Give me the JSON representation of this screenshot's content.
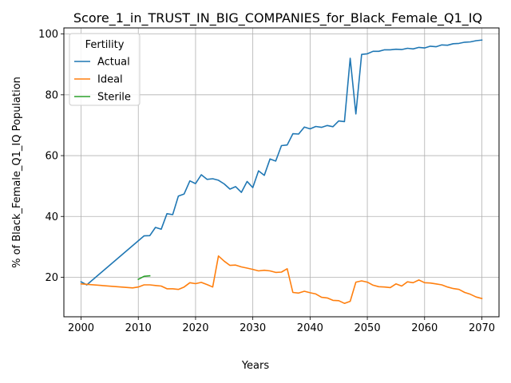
{
  "chart_data": {
    "type": "line",
    "title": "Score_1_in_TRUST_IN_BIG_COMPANIES_for_Black_Female_Q1_IQ",
    "xlabel": "Years",
    "ylabel": "% of Black_Female_Q1_IQ Population",
    "xlim": [
      1997,
      2073
    ],
    "ylim": [
      7,
      102
    ],
    "xticks": [
      2000,
      2010,
      2020,
      2030,
      2040,
      2050,
      2060,
      2070
    ],
    "yticks": [
      20,
      40,
      60,
      80,
      100
    ],
    "grid": true,
    "legend": {
      "title": "Fertility",
      "placement": "top-left"
    },
    "series": [
      {
        "name": "Actual",
        "color": "#1f77b4",
        "x": [
          2000,
          2001,
          2011,
          2012,
          2013,
          2014,
          2015,
          2016,
          2017,
          2018,
          2019,
          2020,
          2021,
          2022,
          2023,
          2024,
          2025,
          2026,
          2027,
          2028,
          2029,
          2030,
          2031,
          2032,
          2033,
          2034,
          2035,
          2036,
          2037,
          2038,
          2039,
          2040,
          2041,
          2042,
          2043,
          2044,
          2045,
          2046,
          2047,
          2048,
          2049,
          2050,
          2051,
          2052,
          2053,
          2054,
          2055,
          2056,
          2057,
          2058,
          2059,
          2060,
          2061,
          2062,
          2063,
          2064,
          2065,
          2066,
          2067,
          2068,
          2069,
          2070
        ],
        "y": [
          18.5,
          17.5,
          33.6,
          33.7,
          36.4,
          35.8,
          40.9,
          40.6,
          46.7,
          47.4,
          51.7,
          50.8,
          53.7,
          52.2,
          52.4,
          51.9,
          50.7,
          49.0,
          49.8,
          47.9,
          51.5,
          49.5,
          55.0,
          53.5,
          58.9,
          58.2,
          63.3,
          63.5,
          67.2,
          67.1,
          69.4,
          68.8,
          69.6,
          69.3,
          69.9,
          69.5,
          71.4,
          71.2,
          92.0,
          73.7,
          93.3,
          93.5,
          94.3,
          94.3,
          94.8,
          94.8,
          95.0,
          94.9,
          95.3,
          95.1,
          95.6,
          95.4,
          96.0,
          95.8,
          96.4,
          96.3,
          96.8,
          96.9,
          97.3,
          97.4,
          97.8,
          98.0
        ]
      },
      {
        "name": "Ideal",
        "color": "#ff7f0e",
        "x": [
          2000,
          2009,
          2010,
          2011,
          2012,
          2013,
          2014,
          2015,
          2016,
          2017,
          2018,
          2019,
          2020,
          2021,
          2022,
          2023,
          2024,
          2025,
          2026,
          2027,
          2028,
          2029,
          2030,
          2031,
          2032,
          2033,
          2034,
          2035,
          2036,
          2037,
          2038,
          2039,
          2040,
          2041,
          2042,
          2043,
          2044,
          2045,
          2046,
          2047,
          2048,
          2049,
          2050,
          2051,
          2052,
          2053,
          2054,
          2055,
          2056,
          2057,
          2058,
          2059,
          2060,
          2061,
          2062,
          2063,
          2064,
          2065,
          2066,
          2067,
          2068,
          2069,
          2070
        ],
        "y": [
          17.8,
          16.5,
          16.8,
          17.5,
          17.5,
          17.3,
          17.1,
          16.2,
          16.2,
          16.0,
          16.8,
          18.2,
          17.9,
          18.3,
          17.6,
          16.8,
          27.0,
          25.3,
          23.9,
          24.0,
          23.4,
          23.0,
          22.6,
          22.1,
          22.3,
          22.1,
          21.6,
          21.7,
          22.8,
          15.0,
          14.8,
          15.4,
          14.9,
          14.5,
          13.4,
          13.2,
          12.4,
          12.3,
          11.4,
          12.1,
          18.4,
          18.8,
          18.4,
          17.4,
          16.9,
          16.8,
          16.6,
          17.8,
          17.1,
          18.5,
          18.2,
          19.1,
          18.2,
          18.1,
          17.8,
          17.5,
          16.8,
          16.3,
          16.0,
          15.0,
          14.4,
          13.5,
          13.0
        ]
      },
      {
        "name": "Sterile",
        "color": "#2ca02c",
        "x": [
          2010,
          2011,
          2012
        ],
        "y": [
          19.3,
          20.3,
          20.5
        ]
      }
    ]
  }
}
